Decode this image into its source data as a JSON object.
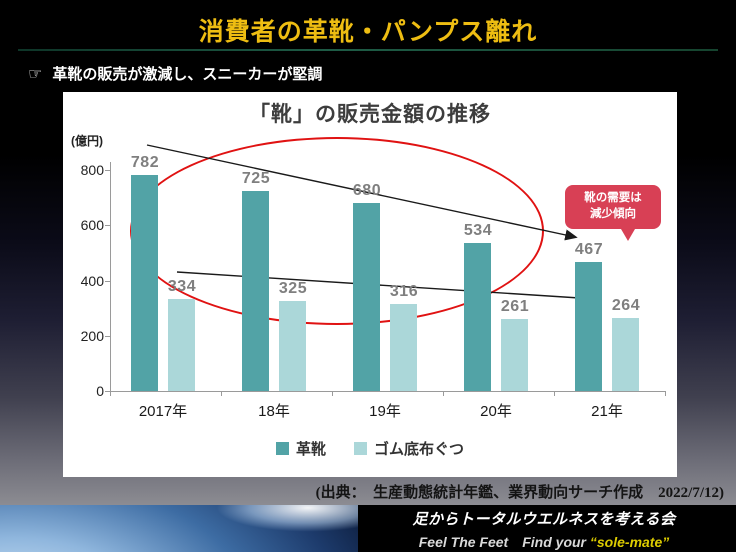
{
  "slide": {
    "title": "消費者の革靴・パンプス離れ",
    "bullet_icon": "☞",
    "bullet": "革靴の販売が激減し、スニーカーが堅調",
    "source": "(出典： 生産動態統計年鑑、業界動向サーチ作成　2022/7/12)",
    "footer": {
      "org": "足からトータルウエルネスを考える会",
      "tagline_prefix": "Feel The Feet　Find your ",
      "tagline_highlight": "“sole-mate”"
    },
    "colors": {
      "title_gold": "#eebd12",
      "leather_bar": "#52a3a6",
      "rubber_bar": "#abd7d9",
      "ellipse_red": "#e01212",
      "callout_bg": "#d84055",
      "value_label_gray": "#7f7f7f"
    }
  },
  "chart_data": {
    "type": "bar",
    "title": "「靴」の販売金額の推移",
    "unit_label": "(億円)",
    "categories": [
      "2017年",
      "18年",
      "19年",
      "20年",
      "21年"
    ],
    "series": [
      {
        "name": "革靴",
        "color": "#52a3a6",
        "values": [
          782,
          725,
          680,
          534,
          467
        ]
      },
      {
        "name": "ゴム底布ぐつ",
        "color": "#abd7d9",
        "values": [
          334,
          325,
          316,
          261,
          264
        ]
      }
    ],
    "ylim": [
      0,
      800
    ],
    "yticks": [
      0,
      200,
      400,
      600,
      800
    ],
    "grid": false,
    "legend_position": "bottom",
    "annotations": {
      "callout_line1": "靴の需要は",
      "callout_line2": "減少傾向",
      "ellipse": "encircles declining leather-shoe bars 2017-20",
      "arrows": "two downward trend arrows"
    }
  }
}
